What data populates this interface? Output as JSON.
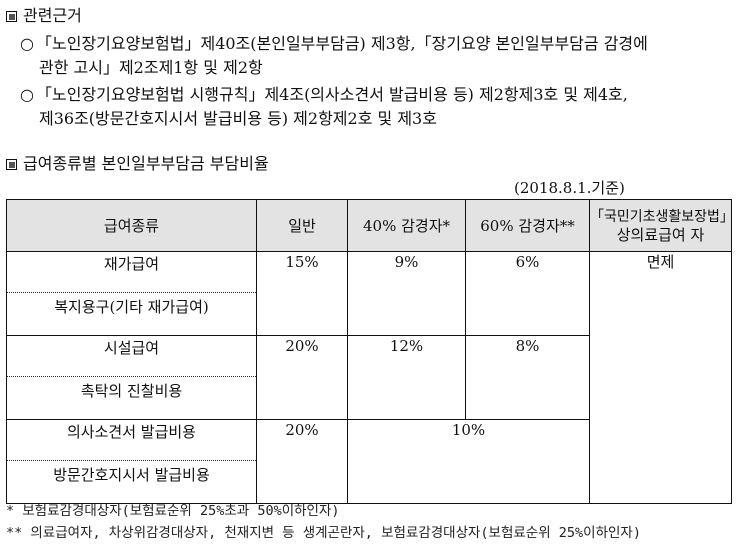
{
  "section1": {
    "title": "관련근거",
    "items": [
      {
        "line1": "「노인장기요양보험법」제40조(본인일부부담금) 제3항,「장기요양 본인일부부담금 감경에",
        "line2": "관한 고시」제2조제1항 및 제2항"
      },
      {
        "line1": "「노인장기요양보험법 시행규칙」제4조(의사소견서 발급비용 등) 제2항제3호 및 제4호,",
        "line2": "제36조(방문간호지시서 발급비용 등) 제2항제2호 및 제3호"
      }
    ]
  },
  "section2": {
    "title": "급여종류별 본인일부부담금 부담비율",
    "basis_date": "(2018.8.1.기준)"
  },
  "table": {
    "headers": {
      "type": "급여종류",
      "general": "일반",
      "reduced40": "40% 감경자*",
      "reduced60": "60% 감경자**",
      "basic_line1": "「국민기초생활보장법」",
      "basic_line2": "상의료급여 자"
    },
    "rows": [
      {
        "cat_top": "재가급여",
        "cat_bottom": "복지용구(기타 재가급여)",
        "general": "15%",
        "reduced40": "9%",
        "reduced60": "6%"
      },
      {
        "cat_top": "시설급여",
        "cat_bottom": "촉탁의 진찰비용",
        "general": "20%",
        "reduced40": "12%",
        "reduced60": "8%"
      },
      {
        "cat_top": "의사소견서 발급비용",
        "cat_bottom": "방문간호지시서 발급비용",
        "general": "20%",
        "reduced_merged": "10%"
      }
    ],
    "exempt": "면제"
  },
  "notes": [
    "* 보험료감경대상자(보험료순위 25%초과 50%이하인자)",
    "** 의료급여자, 차상위감경대상자, 천재지변 등 생계곤란자, 보험료감경대상자(보험료순위 25%이하인자)"
  ]
}
